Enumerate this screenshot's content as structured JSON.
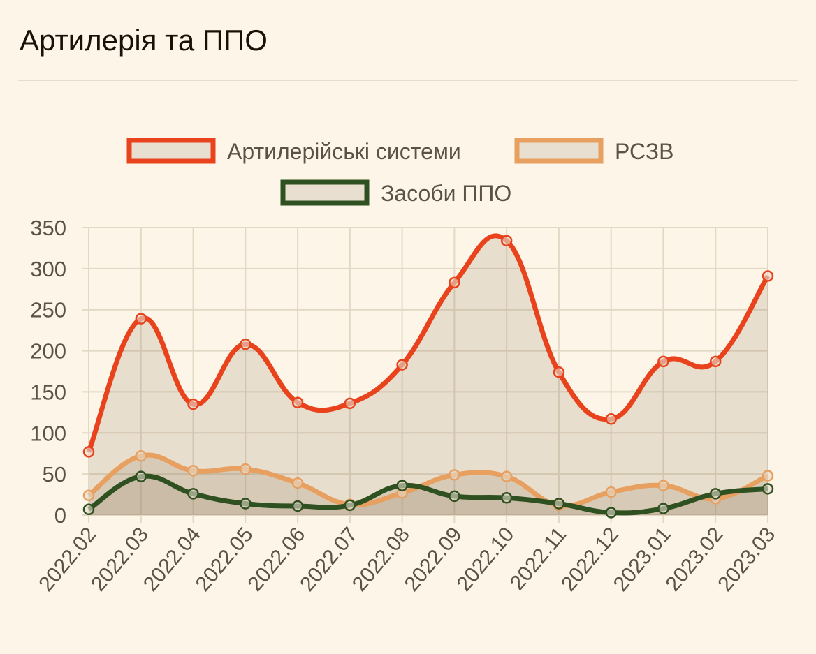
{
  "header": {
    "title": "Артилерія та ППО"
  },
  "chart_data": {
    "type": "line",
    "title": "",
    "xlabel": "",
    "ylabel": "",
    "ylim": [
      0,
      350
    ],
    "yticks": [
      0,
      50,
      100,
      150,
      200,
      250,
      300,
      350
    ],
    "grid": true,
    "legend": "top",
    "fill": true,
    "x": [
      "2022.02",
      "2022.03",
      "2022.04",
      "2022.05",
      "2022.06",
      "2022.07",
      "2022.08",
      "2022.09",
      "2022.10",
      "2022.11",
      "2022.12",
      "2023.01",
      "2023.02",
      "2023.03"
    ],
    "series": [
      {
        "name": "Артилерійські системи",
        "color": "#e8431c",
        "values": [
          77,
          239,
          135,
          208,
          137,
          136,
          183,
          283,
          334,
          174,
          117,
          187,
          187,
          291
        ]
      },
      {
        "name": "РСЗВ",
        "color": "#e8a060",
        "values": [
          24,
          72,
          54,
          56,
          39,
          13,
          27,
          49,
          47,
          12,
          28,
          36,
          20,
          48
        ]
      },
      {
        "name": "Засоби ППО",
        "color": "#2f5020",
        "values": [
          7,
          47,
          26,
          14,
          11,
          12,
          36,
          23,
          21,
          14,
          3,
          8,
          26,
          32
        ]
      }
    ]
  }
}
